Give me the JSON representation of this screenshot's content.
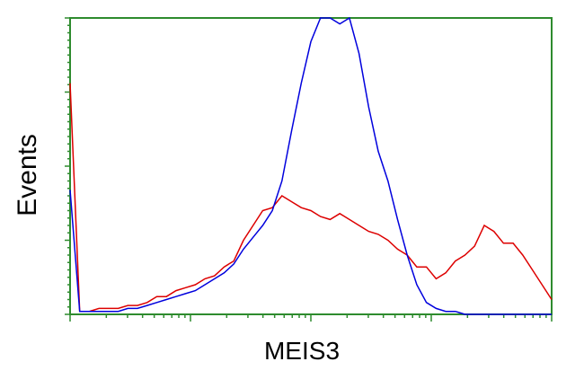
{
  "chart_data": {
    "type": "line",
    "xlabel": "MEIS3",
    "ylabel": "Events",
    "xlim": [
      0,
      100
    ],
    "ylim": [
      0,
      100
    ],
    "x": [
      0,
      2,
      4,
      6,
      8,
      10,
      12,
      14,
      16,
      18,
      20,
      22,
      24,
      26,
      28,
      30,
      32,
      34,
      36,
      38,
      40,
      42,
      44,
      46,
      48,
      50,
      52,
      54,
      56,
      58,
      60,
      62,
      64,
      66,
      68,
      70,
      72,
      74,
      76,
      78,
      80,
      82,
      84,
      86,
      88,
      90,
      92,
      94,
      96,
      98,
      100
    ],
    "series": [
      {
        "color": "#0000dd",
        "values": [
          42,
          1,
          1,
          1,
          1,
          1,
          2,
          2,
          3,
          4,
          5,
          6,
          7,
          8,
          10,
          12,
          14,
          17,
          22,
          26,
          30,
          35,
          45,
          62,
          78,
          92,
          100,
          100,
          98,
          100,
          88,
          70,
          55,
          45,
          32,
          20,
          10,
          4,
          2,
          1,
          1,
          0,
          0,
          0,
          0,
          0,
          0,
          0,
          0,
          0,
          0
        ]
      },
      {
        "color": "#dd0000",
        "values": [
          78,
          1,
          1,
          2,
          2,
          2,
          3,
          3,
          4,
          6,
          6,
          8,
          9,
          10,
          12,
          13,
          16,
          18,
          25,
          30,
          35,
          36,
          40,
          38,
          36,
          35,
          33,
          32,
          34,
          32,
          30,
          28,
          27,
          25,
          22,
          20,
          16,
          16,
          12,
          14,
          18,
          20,
          23,
          30,
          28,
          24,
          24,
          20,
          15,
          10,
          5
        ]
      }
    ]
  }
}
